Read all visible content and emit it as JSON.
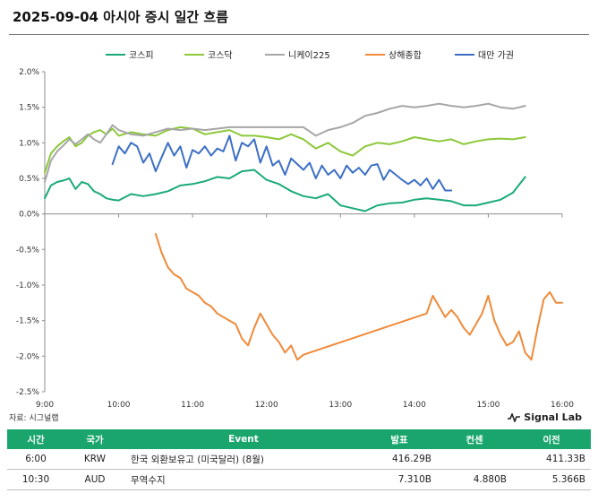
{
  "title": "2025-09-04 아시아 증시 일간 흐름",
  "source": "자료: 시그널랩",
  "brand": "Signal Lab",
  "table": {
    "headers": [
      "시간",
      "국가",
      "Event",
      "발표",
      "컨센",
      "이전"
    ],
    "rows": [
      [
        "6:00",
        "KRW",
        "한국 외환보유고 (미국달러) (8월)",
        "416.29B",
        "",
        "411.33B"
      ],
      [
        "10:30",
        "AUD",
        "무역수지",
        "7.310B",
        "4.880B",
        "5.366B"
      ]
    ]
  },
  "chart_data": {
    "type": "line",
    "y_tick_labels": [
      "2.0%",
      "1.5%",
      "1.0%",
      "0.5%",
      "0.0%",
      "-0.5%",
      "-1.0%",
      "-1.5%",
      "-2.0%",
      "-2.5%"
    ],
    "x_tick_labels": [
      "9:00",
      "10:00",
      "11:00",
      "12:00",
      "13:00",
      "14:00",
      "15:00",
      "16:00"
    ],
    "ylim": [
      -2.5,
      2.0
    ],
    "xlim": [
      "9:00",
      "16:00"
    ],
    "grid": false,
    "legend_position": "top",
    "series": [
      {
        "name": "코스피",
        "color": "#1aaa78",
        "x": [
          "9:00",
          "9:05",
          "9:10",
          "9:15",
          "9:20",
          "9:25",
          "9:30",
          "9:35",
          "9:40",
          "9:45",
          "9:50",
          "9:55",
          "10:00",
          "10:10",
          "10:20",
          "10:30",
          "10:40",
          "10:50",
          "11:00",
          "11:10",
          "11:20",
          "11:30",
          "11:40",
          "11:50",
          "12:00",
          "12:10",
          "12:20",
          "12:30",
          "12:40",
          "12:50",
          "13:00",
          "13:10",
          "13:20",
          "13:30",
          "13:40",
          "13:50",
          "14:00",
          "14:10",
          "14:20",
          "14:30",
          "14:40",
          "14:50",
          "15:00",
          "15:10",
          "15:20",
          "15:30"
        ],
        "y": [
          0.22,
          0.4,
          0.45,
          0.47,
          0.5,
          0.35,
          0.45,
          0.42,
          0.32,
          0.28,
          0.22,
          0.2,
          0.19,
          0.28,
          0.25,
          0.28,
          0.32,
          0.4,
          0.42,
          0.46,
          0.52,
          0.5,
          0.6,
          0.62,
          0.48,
          0.42,
          0.32,
          0.25,
          0.22,
          0.28,
          0.12,
          0.08,
          0.04,
          0.12,
          0.15,
          0.16,
          0.2,
          0.22,
          0.2,
          0.18,
          0.12,
          0.12,
          0.16,
          0.2,
          0.3,
          0.52
        ]
      },
      {
        "name": "코스닥",
        "color": "#8cc83a",
        "x": [
          "9:00",
          "9:05",
          "9:10",
          "9:15",
          "9:20",
          "9:25",
          "9:30",
          "9:35",
          "9:40",
          "9:45",
          "9:50",
          "9:55",
          "10:00",
          "10:10",
          "10:20",
          "10:30",
          "10:40",
          "10:50",
          "11:00",
          "11:10",
          "11:20",
          "11:30",
          "11:40",
          "11:50",
          "12:00",
          "12:10",
          "12:20",
          "12:30",
          "12:40",
          "12:50",
          "13:00",
          "13:10",
          "13:20",
          "13:30",
          "13:40",
          "13:50",
          "14:00",
          "14:10",
          "14:20",
          "14:30",
          "14:40",
          "14:50",
          "15:00",
          "15:10",
          "15:20",
          "15:30"
        ],
        "y": [
          0.58,
          0.85,
          0.95,
          1.02,
          1.08,
          0.95,
          1.0,
          1.1,
          1.15,
          1.18,
          1.12,
          1.2,
          1.1,
          1.15,
          1.12,
          1.1,
          1.18,
          1.22,
          1.2,
          1.12,
          1.15,
          1.18,
          1.1,
          1.1,
          1.08,
          1.05,
          1.12,
          1.05,
          0.92,
          1.0,
          0.88,
          0.82,
          0.95,
          1.0,
          0.98,
          1.02,
          1.08,
          1.05,
          1.02,
          1.05,
          0.98,
          1.02,
          1.05,
          1.06,
          1.05,
          1.08
        ]
      },
      {
        "name": "니케이225",
        "color": "#a6a6a6",
        "x": [
          "9:00",
          "9:05",
          "9:10",
          "9:15",
          "9:20",
          "9:25",
          "9:30",
          "9:35",
          "9:40",
          "9:45",
          "9:50",
          "9:55",
          "10:00",
          "10:10",
          "10:20",
          "10:30",
          "10:40",
          "10:50",
          "11:00",
          "11:10",
          "11:20",
          "11:30",
          "11:40",
          "11:50",
          "12:00",
          "12:10",
          "12:20",
          "12:30",
          "12:40",
          "12:50",
          "13:00",
          "13:10",
          "13:20",
          "13:30",
          "13:40",
          "13:50",
          "14:00",
          "14:10",
          "14:20",
          "14:30",
          "14:40",
          "14:50",
          "15:00",
          "15:10",
          "15:20",
          "15:30"
        ],
        "y": [
          0.45,
          0.75,
          0.88,
          0.96,
          1.05,
          0.98,
          1.05,
          1.12,
          1.05,
          1.0,
          1.12,
          1.25,
          1.18,
          1.12,
          1.1,
          1.15,
          1.2,
          1.18,
          1.2,
          1.18,
          1.2,
          1.22,
          1.22,
          1.22,
          1.22,
          1.22,
          1.22,
          1.22,
          1.1,
          1.18,
          1.22,
          1.28,
          1.38,
          1.42,
          1.48,
          1.52,
          1.5,
          1.52,
          1.55,
          1.52,
          1.5,
          1.52,
          1.55,
          1.5,
          1.48,
          1.52
        ]
      },
      {
        "name": "상해종합",
        "color": "#ef8a3a",
        "x": [
          "10:30",
          "10:35",
          "10:40",
          "10:45",
          "10:50",
          "10:55",
          "11:00",
          "11:05",
          "11:10",
          "11:15",
          "11:20",
          "11:25",
          "11:30",
          "11:35",
          "11:40",
          "11:45",
          "11:50",
          "11:55",
          "12:00",
          "12:05",
          "12:10",
          "12:15",
          "12:20",
          "12:25",
          "12:30",
          "14:10",
          "14:15",
          "14:20",
          "14:25",
          "14:30",
          "14:35",
          "14:40",
          "14:45",
          "14:50",
          "14:55",
          "15:00",
          "15:05",
          "15:10",
          "15:15",
          "15:20",
          "15:25",
          "15:30",
          "15:35",
          "15:40",
          "15:45",
          "15:50",
          "15:55",
          "16:00"
        ],
        "y": [
          -0.28,
          -0.55,
          -0.75,
          -0.85,
          -0.9,
          -1.05,
          -1.1,
          -1.15,
          -1.25,
          -1.3,
          -1.4,
          -1.45,
          -1.5,
          -1.55,
          -1.75,
          -1.85,
          -1.6,
          -1.4,
          -1.55,
          -1.7,
          -1.8,
          -1.95,
          -1.85,
          -2.05,
          -1.98,
          -1.4,
          -1.15,
          -1.3,
          -1.45,
          -1.35,
          -1.45,
          -1.6,
          -1.7,
          -1.55,
          -1.4,
          -1.15,
          -1.5,
          -1.7,
          -1.85,
          -1.8,
          -1.65,
          -1.95,
          -2.05,
          -1.6,
          -1.2,
          -1.1,
          -1.25,
          -1.25
        ]
      },
      {
        "name": "대만 가권",
        "color": "#3c6fc4",
        "x": [
          "9:55",
          "10:00",
          "10:05",
          "10:10",
          "10:15",
          "10:20",
          "10:25",
          "10:30",
          "10:35",
          "10:40",
          "10:45",
          "10:50",
          "10:55",
          "11:00",
          "11:05",
          "11:10",
          "11:15",
          "11:20",
          "11:25",
          "11:30",
          "11:35",
          "11:40",
          "11:45",
          "11:50",
          "11:55",
          "12:00",
          "12:05",
          "12:10",
          "12:15",
          "12:20",
          "12:25",
          "12:30",
          "12:35",
          "12:40",
          "12:45",
          "12:50",
          "12:55",
          "13:00",
          "13:05",
          "13:10",
          "13:15",
          "13:20",
          "13:25",
          "13:30",
          "13:35",
          "13:40",
          "13:45",
          "13:50",
          "13:55",
          "14:00",
          "14:05",
          "14:10",
          "14:15",
          "14:20",
          "14:25",
          "14:30"
        ],
        "y": [
          0.7,
          0.95,
          0.85,
          1.0,
          0.95,
          0.72,
          0.85,
          0.6,
          0.8,
          1.0,
          0.82,
          0.95,
          0.65,
          0.9,
          0.85,
          0.95,
          0.82,
          0.92,
          0.88,
          1.1,
          0.75,
          1.0,
          0.95,
          1.05,
          0.72,
          0.95,
          0.68,
          0.75,
          0.55,
          0.78,
          0.7,
          0.62,
          0.72,
          0.5,
          0.68,
          0.55,
          0.62,
          0.5,
          0.68,
          0.58,
          0.65,
          0.55,
          0.68,
          0.7,
          0.48,
          0.62,
          0.55,
          0.48,
          0.42,
          0.48,
          0.4,
          0.5,
          0.35,
          0.48,
          0.33,
          0.33
        ]
      }
    ]
  }
}
